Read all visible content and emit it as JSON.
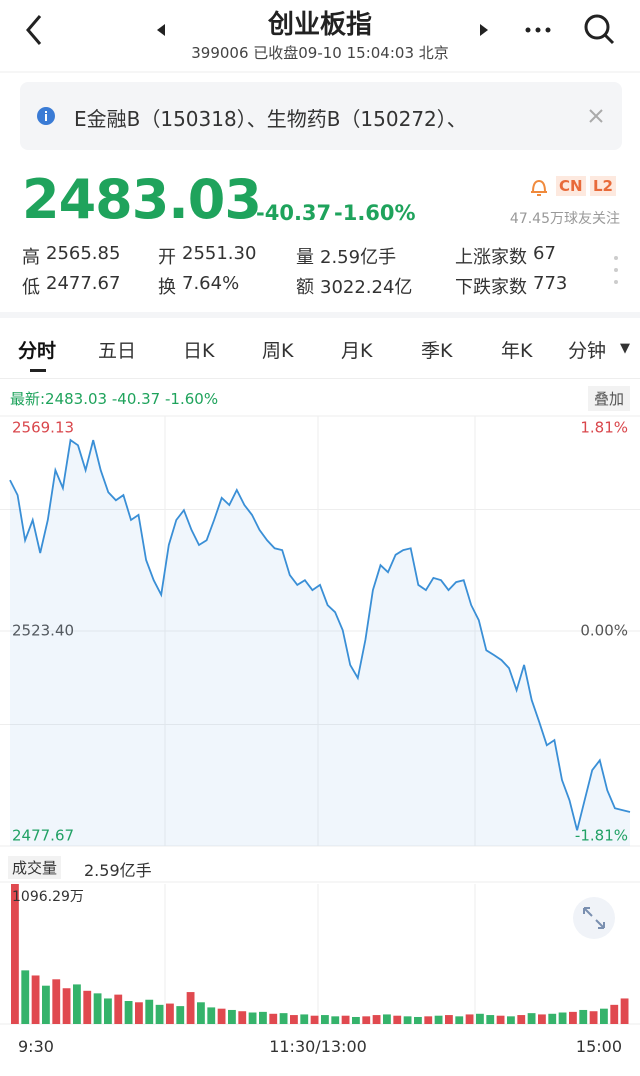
{
  "header": {
    "title": "创业板指",
    "subtitle": "399006 已收盘09-10 15:04:03 北京"
  },
  "notice": {
    "text": "E金融B（150318）、生物药B（150272）、"
  },
  "quote": {
    "price": "2483.03",
    "change": "-40.37",
    "change_pct": "-1.60%",
    "badges": [
      "CN",
      "L2"
    ],
    "followers": "47.45万球友关注"
  },
  "stats": [
    {
      "label": "高",
      "value": "2565.85"
    },
    {
      "label": "开",
      "value": "2551.30"
    },
    {
      "label": "量",
      "value": "2.59亿手"
    },
    {
      "label": "上涨家数",
      "value": "67"
    },
    {
      "label": "低",
      "value": "2477.67"
    },
    {
      "label": "换",
      "value": "7.64%"
    },
    {
      "label": "额",
      "value": "3022.24亿"
    },
    {
      "label": "下跌家数",
      "value": "773"
    }
  ],
  "tabs": [
    "分时",
    "五日",
    "日K",
    "周K",
    "月K",
    "季K",
    "年K",
    "分钟"
  ],
  "intraday": {
    "latest": "最新:2483.03",
    "latest_change": "-40.37",
    "latest_change_pct": "-1.60%",
    "overlay": "叠加",
    "ylim": [
      2477.67,
      2569.13
    ],
    "yticks": [
      2569.13,
      {
        "value": 2523.4,
        "label": "2523.40"
      },
      2477.67
    ],
    "pct_ticks": [
      "1.81%",
      "0.00%",
      "-1.81%"
    ],
    "color": "#3a8fd6",
    "prices": [
      2555.5,
      2552.3,
      2542.7,
      2547.0,
      2540.0,
      2547.0,
      2557.6,
      2553.8,
      2564.0,
      2562.9,
      2557.6,
      2564.0,
      2557.6,
      2552.9,
      2551.2,
      2552.3,
      2547.0,
      2548.1,
      2538.5,
      2534.2,
      2531.1,
      2541.7,
      2547.0,
      2549.1,
      2544.9,
      2541.7,
      2542.7,
      2547.0,
      2551.7,
      2550.2,
      2553.4,
      2550.2,
      2548.1,
      2544.9,
      2542.7,
      2541.0,
      2540.6,
      2535.3,
      2533.2,
      2534.2,
      2532.1,
      2533.2,
      2528.9,
      2527.4,
      2523.6,
      2516.2,
      2513.4,
      2521.5,
      2532.1,
      2537.4,
      2535.9,
      2539.6,
      2540.6,
      2541.0,
      2533.2,
      2532.1,
      2534.7,
      2534.2,
      2532.1,
      2533.8,
      2534.2,
      2528.9,
      2525.7,
      2519.3,
      2518.3,
      2517.2,
      2515.5,
      2510.8,
      2516.2,
      2508.7,
      2504.0,
      2499.1,
      2500.2,
      2491.7,
      2487.4,
      2481.0,
      2487.4,
      2493.8,
      2495.9,
      2489.5,
      2485.7,
      2485.3,
      2484.9
    ]
  },
  "volume": {
    "label": "成交量",
    "total": "2.59亿手",
    "max_label": "1096.29万",
    "ylim": [
      0,
      1096.29
    ],
    "up_color": "#e0494f",
    "down_color": "#35b36b",
    "values": [
      1096.29,
      420,
      380,
      300,
      350,
      280,
      310,
      260,
      240,
      200,
      230,
      180,
      170,
      190,
      150,
      160,
      140,
      250,
      170,
      130,
      120,
      110,
      100,
      90,
      95,
      80,
      85,
      70,
      75,
      65,
      70,
      60,
      65,
      55,
      60,
      70,
      75,
      65,
      60,
      55,
      60,
      65,
      70,
      60,
      75,
      80,
      70,
      65,
      60,
      70,
      85,
      75,
      80,
      90,
      95,
      110,
      100,
      120,
      150,
      200
    ],
    "up": [
      true,
      false,
      true,
      false,
      true,
      true,
      false,
      true,
      false,
      false,
      true,
      false,
      true,
      false,
      false,
      true,
      false,
      true,
      false,
      false,
      true,
      false,
      true,
      false,
      false,
      true,
      false,
      true,
      false,
      true,
      false,
      false,
      true,
      false,
      true,
      true,
      false,
      true,
      false,
      false,
      true,
      false,
      true,
      false,
      true,
      false,
      false,
      true,
      false,
      true,
      false,
      true,
      false,
      false,
      true,
      false,
      true,
      false,
      true,
      true
    ],
    "time_labels": [
      "9:30",
      "11:30/13:00",
      "15:00"
    ]
  }
}
